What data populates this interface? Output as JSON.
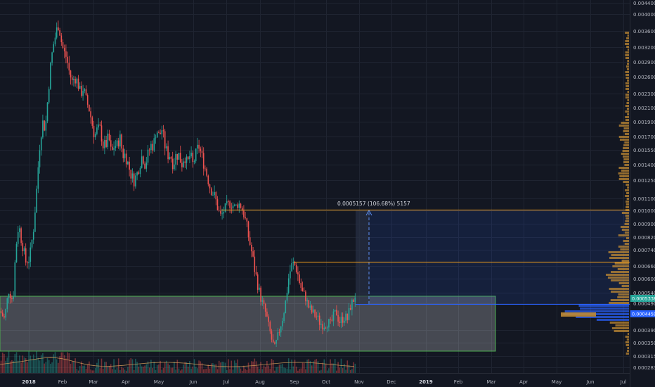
{
  "chart_data": {
    "type": "candlestick",
    "y_axis_ticks": [
      "0.0044000",
      "0.0040000",
      "0.0036000",
      "0.0032000",
      "0.0029000",
      "0.0026000",
      "0.0023000",
      "0.0021000",
      "0.0019000",
      "0.0017000",
      "0.0015500",
      "0.0014000",
      "0.0012500",
      "0.0011000",
      "0.0010000",
      "0.0009000",
      "0.0008200",
      "0.0007400",
      "0.0006600",
      "0.0006000",
      "0.0005400",
      "0.0004900",
      "0.0003900",
      "0.0003500",
      "0.0003150",
      "0.0002830"
    ],
    "x_axis_ticks": [
      {
        "label": "2018",
        "bold": true
      },
      {
        "label": "Feb"
      },
      {
        "label": "Mar"
      },
      {
        "label": "Apr"
      },
      {
        "label": "May"
      },
      {
        "label": "Jun"
      },
      {
        "label": "Jul"
      },
      {
        "label": "Aug"
      },
      {
        "label": "Sep"
      },
      {
        "label": "Oct"
      },
      {
        "label": "Nov"
      },
      {
        "label": "Dec"
      },
      {
        "label": "2019",
        "bold": true
      },
      {
        "label": "Feb"
      },
      {
        "label": "Mar"
      },
      {
        "label": "Apr"
      },
      {
        "label": "May"
      },
      {
        "label": "Jun"
      },
      {
        "label": "Jul"
      }
    ],
    "price_tags": [
      {
        "label": "0.0005338",
        "color": "#26a69a"
      },
      {
        "label": "0.0004459",
        "color": "#2962ff"
      }
    ],
    "measure_label": "0.0005157 (106.68%) 5157",
    "levels": {
      "top_line": 0.001,
      "mid_line": 0.00068,
      "blue_line": 0.0004459,
      "support_zone": [
        0.00032,
        0.00052
      ]
    },
    "colors": {
      "background": "#131722",
      "up": "#26a69a",
      "down": "#ef5350",
      "level_line": "#f7a21b",
      "volume_profile": "#c08a33",
      "volume_profile_hl": "#2962ff",
      "zone_fill": "#ffffff",
      "zone_border": "#4caf50",
      "measure_fill": "#2962ff"
    },
    "price_path": [
      [
        0,
        0.00046
      ],
      [
        6,
        0.00043
      ],
      [
        12,
        0.00055
      ],
      [
        18,
        0.0005
      ],
      [
        22,
        0.00075
      ],
      [
        26,
        0.0009
      ],
      [
        30,
        0.0008
      ],
      [
        36,
        0.00068
      ],
      [
        42,
        0.0007
      ],
      [
        48,
        0.0009
      ],
      [
        52,
        0.0012
      ],
      [
        56,
        0.0016
      ],
      [
        60,
        0.0019
      ],
      [
        64,
        0.0018
      ],
      [
        68,
        0.0023
      ],
      [
        72,
        0.0029
      ],
      [
        76,
        0.0033
      ],
      [
        80,
        0.0036
      ],
      [
        83,
        0.0038
      ],
      [
        86,
        0.0034
      ],
      [
        90,
        0.0031
      ],
      [
        94,
        0.003
      ],
      [
        98,
        0.0027
      ],
      [
        102,
        0.0025
      ],
      [
        106,
        0.0026
      ],
      [
        110,
        0.0025
      ],
      [
        114,
        0.0023
      ],
      [
        118,
        0.0024
      ],
      [
        122,
        0.0022
      ],
      [
        126,
        0.0021
      ],
      [
        130,
        0.0019
      ],
      [
        134,
        0.0017
      ],
      [
        138,
        0.0018
      ],
      [
        142,
        0.0018
      ],
      [
        146,
        0.0016
      ],
      [
        150,
        0.0016
      ],
      [
        154,
        0.0017
      ],
      [
        158,
        0.0015
      ],
      [
        162,
        0.0016
      ],
      [
        166,
        0.0016
      ],
      [
        170,
        0.0017
      ],
      [
        174,
        0.0015
      ],
      [
        178,
        0.0015
      ],
      [
        182,
        0.0014
      ],
      [
        186,
        0.0013
      ],
      [
        190,
        0.00125
      ],
      [
        194,
        0.0013
      ],
      [
        198,
        0.0014
      ],
      [
        202,
        0.0015
      ],
      [
        206,
        0.0014
      ],
      [
        210,
        0.0015
      ],
      [
        214,
        0.0016
      ],
      [
        218,
        0.0016
      ],
      [
        222,
        0.0018
      ],
      [
        226,
        0.0017
      ],
      [
        230,
        0.0018
      ],
      [
        234,
        0.0016
      ],
      [
        238,
        0.0015
      ],
      [
        242,
        0.0015
      ],
      [
        246,
        0.0014
      ],
      [
        250,
        0.0015
      ],
      [
        254,
        0.0015
      ],
      [
        258,
        0.0014
      ],
      [
        262,
        0.0015
      ],
      [
        266,
        0.0014
      ],
      [
        270,
        0.0015
      ],
      [
        274,
        0.0014
      ],
      [
        278,
        0.0015
      ],
      [
        282,
        0.0016
      ],
      [
        286,
        0.0015
      ],
      [
        290,
        0.0014
      ],
      [
        294,
        0.0013
      ],
      [
        298,
        0.0012
      ],
      [
        302,
        0.00115
      ],
      [
        306,
        0.0011
      ],
      [
        310,
        0.001
      ],
      [
        314,
        0.00095
      ],
      [
        318,
        0.001
      ],
      [
        322,
        0.00103
      ],
      [
        326,
        0.00106
      ],
      [
        330,
        0.00105
      ],
      [
        334,
        0.00102
      ],
      [
        338,
        0.00106
      ],
      [
        342,
        0.00104
      ],
      [
        346,
        0.00098
      ],
      [
        350,
        0.0009
      ],
      [
        354,
        0.0008
      ],
      [
        358,
        0.00072
      ],
      [
        362,
        0.00064
      ],
      [
        366,
        0.00058
      ],
      [
        370,
        0.00052
      ],
      [
        374,
        0.00048
      ],
      [
        378,
        0.00045
      ],
      [
        382,
        0.0004
      ],
      [
        386,
        0.00036
      ],
      [
        390,
        0.00033
      ],
      [
        394,
        0.00036
      ],
      [
        398,
        0.0004
      ],
      [
        402,
        0.00044
      ],
      [
        406,
        0.0005
      ],
      [
        410,
        0.0006
      ],
      [
        414,
        0.00066
      ],
      [
        418,
        0.00067
      ],
      [
        422,
        0.00064
      ],
      [
        426,
        0.00058
      ],
      [
        430,
        0.00054
      ],
      [
        434,
        0.00052
      ],
      [
        438,
        0.00048
      ],
      [
        442,
        0.00046
      ],
      [
        446,
        0.00045
      ],
      [
        450,
        0.00044
      ],
      [
        454,
        0.00042
      ],
      [
        458,
        0.00041
      ],
      [
        462,
        0.00041
      ],
      [
        466,
        0.00042
      ],
      [
        470,
        0.00041
      ],
      [
        474,
        0.00044
      ],
      [
        478,
        0.00046
      ],
      [
        482,
        0.00042
      ],
      [
        486,
        0.00043
      ],
      [
        490,
        0.00044
      ],
      [
        494,
        0.00043
      ],
      [
        498,
        0.00048
      ],
      [
        502,
        0.0005
      ],
      [
        505,
        0.00053
      ]
    ]
  }
}
